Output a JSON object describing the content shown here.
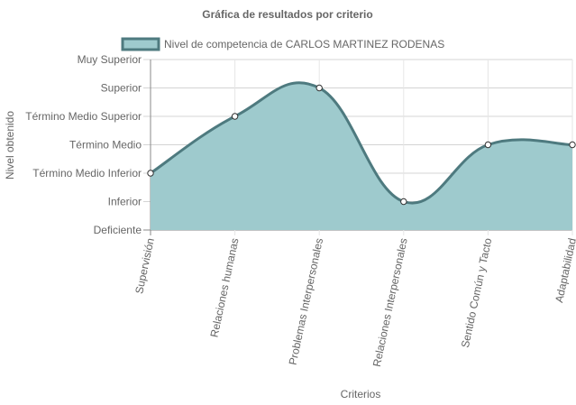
{
  "chart_data": {
    "type": "area",
    "title": "Gráfica de resultados por criterio",
    "xlabel": "Criterios",
    "ylabel": "Nivel obtenido",
    "categories": [
      "Supervisión",
      "Relaciones humanas",
      "Problemas Interpersonales",
      "Relaciones Interpersonales",
      "Sentido Común y Tacto",
      "Adaptabilidad"
    ],
    "y_levels": [
      "Deficiente",
      "Inferior",
      "Término Medio Inferior",
      "Término Medio",
      "Término Medio Superior",
      "Superior",
      "Muy Superior"
    ],
    "ylim": [
      0,
      6
    ],
    "series": [
      {
        "name": "Nivel de competencia de CARLOS MARTINEZ RODENAS",
        "values": [
          2,
          4,
          5,
          1,
          3,
          3
        ]
      }
    ],
    "legend_position": "top",
    "grid": true,
    "colors": {
      "fill": "#9ECACD",
      "line": "#4E7A7F",
      "grid": "#e6e6e6",
      "axis": "#888888"
    }
  }
}
